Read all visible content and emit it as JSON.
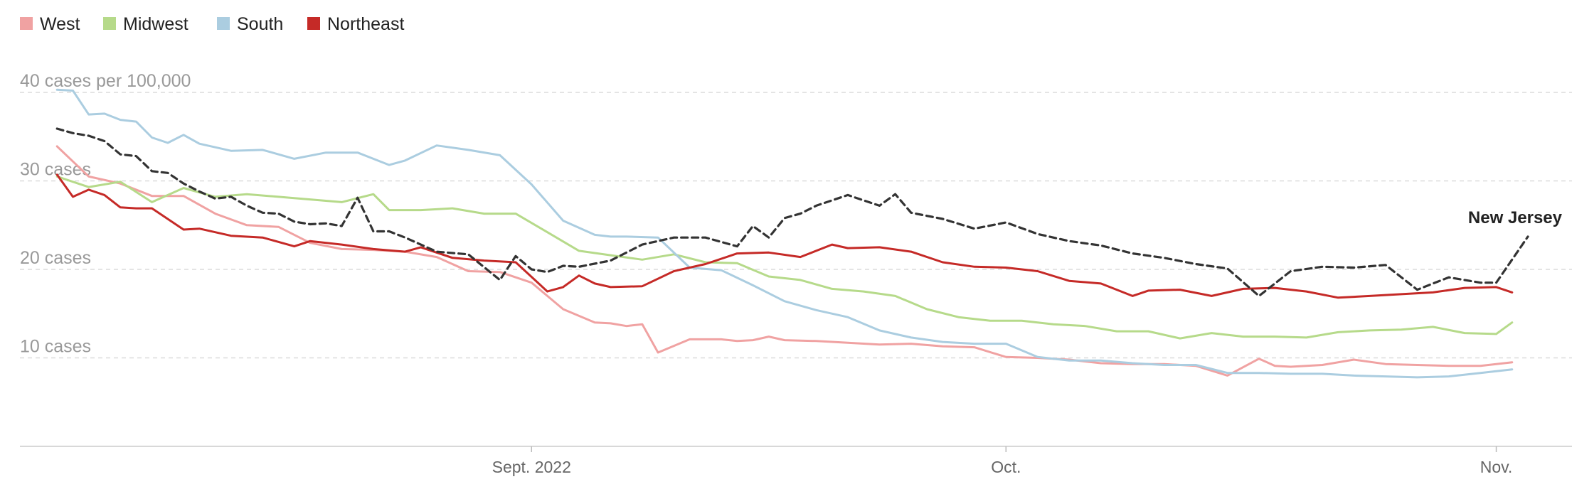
{
  "chart_data": {
    "type": "line",
    "ylabel_top": "40 cases per 100,000",
    "ytick_labels": [
      "10 cases",
      "20 cases",
      "30 cases",
      "40 cases per 100,000"
    ],
    "ytick_values": [
      10,
      20,
      30,
      40
    ],
    "ylim": [
      0,
      40
    ],
    "xlim": [
      "2022-08-01",
      "2022-11-03"
    ],
    "xtick_labels": [
      "Sept. 2022",
      "Oct.",
      "Nov."
    ],
    "xtick_dates": [
      "2022-09-01",
      "2022-10-01",
      "2022-11-01"
    ],
    "grid": true,
    "legend_position": "top-left",
    "legend": [
      "West",
      "Midwest",
      "South",
      "Northeast"
    ],
    "annotation": "New Jersey",
    "series": [
      {
        "name": "West",
        "color": "#f0a2a2",
        "dash": false,
        "x": [
          "2022-08-02",
          "2022-08-04",
          "2022-08-06",
          "2022-08-08",
          "2022-08-10",
          "2022-08-12",
          "2022-08-14",
          "2022-08-16",
          "2022-08-18",
          "2022-08-20",
          "2022-08-22",
          "2022-08-24",
          "2022-08-26",
          "2022-08-28",
          "2022-08-30",
          "2022-09-01",
          "2022-09-03",
          "2022-09-05",
          "2022-09-06",
          "2022-09-07",
          "2022-09-08",
          "2022-09-09",
          "2022-09-11",
          "2022-09-13",
          "2022-09-14",
          "2022-09-15",
          "2022-09-16",
          "2022-09-17",
          "2022-09-19",
          "2022-09-21",
          "2022-09-23",
          "2022-09-25",
          "2022-09-27",
          "2022-09-29",
          "2022-10-01",
          "2022-10-03",
          "2022-10-05",
          "2022-10-07",
          "2022-10-09",
          "2022-10-11",
          "2022-10-13",
          "2022-10-15",
          "2022-10-17",
          "2022-10-18",
          "2022-10-19",
          "2022-10-21",
          "2022-10-23",
          "2022-10-25",
          "2022-10-27",
          "2022-10-29",
          "2022-10-31",
          "2022-11-02"
        ],
        "y": [
          33.9,
          30.5,
          29.7,
          28.3,
          28.3,
          26.3,
          25.0,
          24.8,
          23.0,
          22.3,
          22.2,
          22.0,
          21.4,
          19.8,
          19.7,
          18.5,
          15.5,
          14.0,
          13.9,
          13.6,
          13.8,
          10.6,
          12.1,
          12.1,
          11.9,
          12.0,
          12.4,
          12.0,
          11.9,
          11.7,
          11.5,
          11.6,
          11.3,
          11.2,
          10.1,
          10.0,
          9.8,
          9.4,
          9.3,
          9.3,
          9.1,
          8.0,
          9.9,
          9.1,
          9.0,
          9.2,
          9.8,
          9.3,
          9.2,
          9.1,
          9.1,
          9.5
        ]
      },
      {
        "name": "Midwest",
        "color": "#b6da8a",
        "dash": false,
        "x": [
          "2022-08-02",
          "2022-08-04",
          "2022-08-06",
          "2022-08-08",
          "2022-08-10",
          "2022-08-12",
          "2022-08-14",
          "2022-08-16",
          "2022-08-18",
          "2022-08-20",
          "2022-08-22",
          "2022-08-23",
          "2022-08-25",
          "2022-08-27",
          "2022-08-29",
          "2022-08-31",
          "2022-09-02",
          "2022-09-04",
          "2022-09-06",
          "2022-09-08",
          "2022-09-10",
          "2022-09-12",
          "2022-09-14",
          "2022-09-16",
          "2022-09-18",
          "2022-09-20",
          "2022-09-22",
          "2022-09-24",
          "2022-09-26",
          "2022-09-28",
          "2022-09-30",
          "2022-10-02",
          "2022-10-04",
          "2022-10-06",
          "2022-10-08",
          "2022-10-10",
          "2022-10-12",
          "2022-10-14",
          "2022-10-16",
          "2022-10-18",
          "2022-10-20",
          "2022-10-22",
          "2022-10-24",
          "2022-10-26",
          "2022-10-28",
          "2022-10-30",
          "2022-11-01",
          "2022-11-02"
        ],
        "y": [
          30.5,
          29.3,
          29.9,
          27.6,
          29.2,
          28.2,
          28.5,
          28.2,
          27.9,
          27.6,
          28.5,
          26.7,
          26.7,
          26.9,
          26.3,
          26.3,
          24.2,
          22.1,
          21.6,
          21.1,
          21.7,
          20.8,
          20.7,
          19.2,
          18.8,
          17.8,
          17.5,
          17.0,
          15.5,
          14.6,
          14.2,
          14.2,
          13.8,
          13.6,
          13.0,
          13.0,
          12.2,
          12.8,
          12.4,
          12.4,
          12.3,
          12.9,
          13.1,
          13.2,
          13.5,
          12.8,
          12.7,
          14.0
        ]
      },
      {
        "name": "South",
        "color": "#abcde0",
        "dash": false,
        "x": [
          "2022-08-02",
          "2022-08-03",
          "2022-08-04",
          "2022-08-05",
          "2022-08-06",
          "2022-08-07",
          "2022-08-08",
          "2022-08-09",
          "2022-08-10",
          "2022-08-11",
          "2022-08-12",
          "2022-08-13",
          "2022-08-15",
          "2022-08-17",
          "2022-08-19",
          "2022-08-21",
          "2022-08-23",
          "2022-08-24",
          "2022-08-26",
          "2022-08-28",
          "2022-08-30",
          "2022-09-01",
          "2022-09-03",
          "2022-09-05",
          "2022-09-06",
          "2022-09-07",
          "2022-09-09",
          "2022-09-11",
          "2022-09-13",
          "2022-09-15",
          "2022-09-17",
          "2022-09-19",
          "2022-09-21",
          "2022-09-23",
          "2022-09-25",
          "2022-09-27",
          "2022-09-29",
          "2022-10-01",
          "2022-10-03",
          "2022-10-05",
          "2022-10-07",
          "2022-10-09",
          "2022-10-11",
          "2022-10-13",
          "2022-10-15",
          "2022-10-17",
          "2022-10-19",
          "2022-10-21",
          "2022-10-23",
          "2022-10-25",
          "2022-10-27",
          "2022-10-29",
          "2022-10-31",
          "2022-11-02"
        ],
        "y": [
          40.3,
          40.2,
          37.5,
          37.6,
          36.9,
          36.7,
          34.9,
          34.3,
          35.2,
          34.2,
          33.8,
          33.4,
          33.5,
          32.5,
          33.2,
          33.2,
          31.8,
          32.3,
          34.0,
          33.5,
          32.9,
          29.6,
          25.5,
          23.9,
          23.7,
          23.7,
          23.6,
          20.2,
          19.9,
          18.2,
          16.4,
          15.4,
          14.6,
          13.1,
          12.3,
          11.8,
          11.6,
          11.6,
          10.1,
          9.7,
          9.7,
          9.4,
          9.2,
          9.2,
          8.3,
          8.3,
          8.2,
          8.2,
          8.0,
          7.9,
          7.8,
          7.9,
          8.3,
          8.7
        ]
      },
      {
        "name": "Northeast",
        "color": "#c52a27",
        "dash": false,
        "x": [
          "2022-08-02",
          "2022-08-03",
          "2022-08-04",
          "2022-08-05",
          "2022-08-06",
          "2022-08-07",
          "2022-08-08",
          "2022-08-10",
          "2022-08-11",
          "2022-08-13",
          "2022-08-15",
          "2022-08-17",
          "2022-08-18",
          "2022-08-20",
          "2022-08-22",
          "2022-08-24",
          "2022-08-25",
          "2022-08-27",
          "2022-08-29",
          "2022-08-31",
          "2022-09-02",
          "2022-09-03",
          "2022-09-04",
          "2022-09-05",
          "2022-09-06",
          "2022-09-08",
          "2022-09-10",
          "2022-09-12",
          "2022-09-14",
          "2022-09-16",
          "2022-09-18",
          "2022-09-20",
          "2022-09-21",
          "2022-09-23",
          "2022-09-25",
          "2022-09-27",
          "2022-09-29",
          "2022-10-01",
          "2022-10-03",
          "2022-10-05",
          "2022-10-07",
          "2022-10-09",
          "2022-10-10",
          "2022-10-12",
          "2022-10-14",
          "2022-10-16",
          "2022-10-18",
          "2022-10-20",
          "2022-10-22",
          "2022-10-24",
          "2022-10-26",
          "2022-10-28",
          "2022-10-30",
          "2022-11-01",
          "2022-11-02"
        ],
        "y": [
          30.7,
          28.2,
          29.0,
          28.4,
          27.0,
          26.9,
          26.9,
          24.5,
          24.6,
          23.8,
          23.6,
          22.6,
          23.2,
          22.8,
          22.3,
          22.0,
          22.5,
          21.3,
          21.0,
          20.8,
          17.5,
          18.0,
          19.3,
          18.4,
          18.0,
          18.1,
          19.8,
          20.6,
          21.8,
          21.9,
          21.4,
          22.8,
          22.4,
          22.5,
          22.0,
          20.8,
          20.3,
          20.2,
          19.8,
          18.7,
          18.4,
          17.0,
          17.6,
          17.7,
          17.0,
          17.8,
          17.9,
          17.5,
          16.8,
          17.0,
          17.2,
          17.4,
          17.9,
          18.0,
          17.4
        ]
      },
      {
        "name": "New Jersey",
        "color": "#333333",
        "dash": true,
        "x": [
          "2022-08-02",
          "2022-08-03",
          "2022-08-04",
          "2022-08-05",
          "2022-08-06",
          "2022-08-07",
          "2022-08-08",
          "2022-08-09",
          "2022-08-10",
          "2022-08-11",
          "2022-08-12",
          "2022-08-13",
          "2022-08-14",
          "2022-08-15",
          "2022-08-16",
          "2022-08-17",
          "2022-08-18",
          "2022-08-19",
          "2022-08-20",
          "2022-08-21",
          "2022-08-22",
          "2022-08-23",
          "2022-08-24",
          "2022-08-26",
          "2022-08-28",
          "2022-08-30",
          "2022-08-31",
          "2022-09-01",
          "2022-09-02",
          "2022-09-03",
          "2022-09-04",
          "2022-09-06",
          "2022-09-08",
          "2022-09-10",
          "2022-09-12",
          "2022-09-14",
          "2022-09-15",
          "2022-09-16",
          "2022-09-17",
          "2022-09-18",
          "2022-09-19",
          "2022-09-21",
          "2022-09-23",
          "2022-09-24",
          "2022-09-25",
          "2022-09-27",
          "2022-09-29",
          "2022-10-01",
          "2022-10-03",
          "2022-10-05",
          "2022-10-07",
          "2022-10-09",
          "2022-10-11",
          "2022-10-13",
          "2022-10-15",
          "2022-10-17",
          "2022-10-19",
          "2022-10-21",
          "2022-10-23",
          "2022-10-25",
          "2022-10-27",
          "2022-10-29",
          "2022-10-31",
          "2022-11-01",
          "2022-11-03"
        ],
        "y": [
          35.9,
          35.4,
          35.1,
          34.5,
          33.0,
          32.8,
          31.1,
          30.9,
          29.7,
          28.8,
          28.0,
          28.2,
          27.2,
          26.4,
          26.3,
          25.4,
          25.1,
          25.2,
          24.9,
          28.1,
          24.3,
          24.3,
          23.6,
          22.0,
          21.7,
          18.8,
          21.5,
          20.0,
          19.7,
          20.4,
          20.3,
          21.0,
          22.8,
          23.6,
          23.6,
          22.6,
          24.9,
          23.6,
          25.8,
          26.3,
          27.2,
          28.4,
          27.2,
          28.5,
          26.4,
          25.7,
          24.6,
          25.3,
          24.0,
          23.2,
          22.7,
          21.8,
          21.3,
          20.6,
          20.1,
          17.0,
          19.8,
          20.3,
          20.2,
          20.5,
          17.7,
          19.1,
          18.5,
          18.5,
          23.7
        ]
      }
    ]
  }
}
